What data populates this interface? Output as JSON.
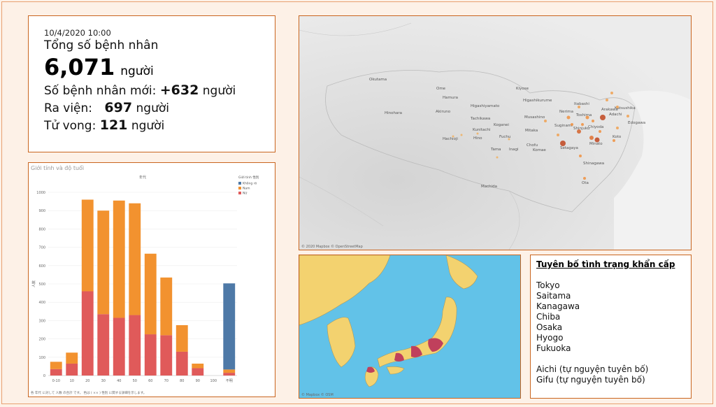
{
  "stats": {
    "timestamp": "10/4/2020 10:00",
    "total_label": "Tổng số bệnh nhân",
    "total_value": "6,071",
    "unit": "người",
    "new_label": "Số bệnh nhân mới:",
    "new_value": "+632",
    "recovered_label": "Ra viện:",
    "recovered_value": "697",
    "deaths_label": "Tử vong:",
    "deaths_value": "121"
  },
  "chart_panel_title": "Giới tính và độ tuổi",
  "chart_data": {
    "type": "bar",
    "title": "年代",
    "ylabel": "人数",
    "ylim": [
      0,
      1000
    ],
    "yticks": [
      0,
      100,
      200,
      300,
      400,
      500,
      600,
      700,
      800,
      900,
      1000
    ],
    "categories": [
      "0-10",
      "10",
      "20",
      "30",
      "40",
      "50",
      "60",
      "70",
      "80",
      "90",
      "100",
      "不明"
    ],
    "legend_title": "Giới tính 性別",
    "legend_position": "top-right",
    "series": [
      {
        "name": "Nữ",
        "color": "#e05a5a",
        "values": [
          35,
          65,
          460,
          335,
          315,
          330,
          225,
          220,
          130,
          40,
          0,
          15
        ]
      },
      {
        "name": "Nam",
        "color": "#f2922f",
        "values": [
          40,
          60,
          500,
          565,
          640,
          610,
          440,
          315,
          145,
          25,
          0,
          18
        ]
      },
      {
        "name": "Không rõ",
        "color": "#4e79a7",
        "values": [
          0,
          0,
          0,
          0,
          0,
          0,
          0,
          0,
          0,
          0,
          0,
          470
        ]
      }
    ],
    "footnote": "各 年代 に対して 人数 の合計 です。 色は ( ×× ) 性別 に関する詳細を示します。"
  },
  "map_labels": [
    "Okutama",
    "Ome",
    "Hamura",
    "Kiyose",
    "Higashikurume",
    "Higashiyamato",
    "Akiruno",
    "Hinohara",
    "Tachikawa",
    "Musashino",
    "Koganei",
    "Kunitachi",
    "Fuchu",
    "Mitaka",
    "Hachioji",
    "Hino",
    "Chofu",
    "Tama",
    "Inagi",
    "Komae",
    "Machida",
    "Nerima",
    "Itabashi",
    "Adachi",
    "Toshima",
    "Arakawa",
    "Katsushika",
    "Suginami",
    "Shinjuku",
    "Chiyoda",
    "Edogawa",
    "Setagaya",
    "Minato",
    "Koto",
    "Shinagawa",
    "Ota"
  ],
  "map_credit": "© 2020 Mapbox © OpenStreetMap",
  "jp_credit": "© Mapbox © OSM",
  "declaration": {
    "title": "Tuyên bố tình trạng khẩn cấp",
    "prefectures": [
      "Tokyo",
      "Saitama",
      "Kanagawa",
      "Chiba",
      "Osaka",
      "Hyogo",
      "Fukuoka"
    ],
    "voluntary": [
      "Aichi (tự nguyện tuyên bố)",
      "Gifu (tự nguyện tuyên bố)"
    ]
  }
}
